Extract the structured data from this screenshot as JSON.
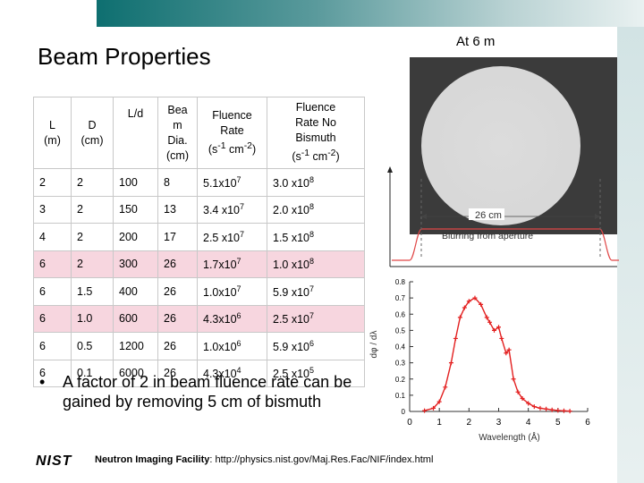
{
  "header": {
    "title": "Beam Properties",
    "at_label": "At 6 m"
  },
  "table": {
    "columns": [
      "L (m)",
      "D (cm)",
      "L/d",
      "Bea m Dia. (cm)",
      "Fluence Rate (s-1 cm-2)",
      "Fluence Rate No Bismuth (s-1 cm-2)"
    ],
    "rows": [
      {
        "L": "2",
        "D": "2",
        "Ld": "100",
        "dia": "8",
        "fr": "5.1x10",
        "fr_exp": "7",
        "frnb": "3.0 x10",
        "frnb_exp": "8",
        "highlight": false
      },
      {
        "L": "3",
        "D": "2",
        "Ld": "150",
        "dia": "13",
        "fr": "3.4 x10",
        "fr_exp": "7",
        "frnb": "2.0 x10",
        "frnb_exp": "8",
        "highlight": false
      },
      {
        "L": "4",
        "D": "2",
        "Ld": "200",
        "dia": "17",
        "fr": "2.5 x10",
        "fr_exp": "7",
        "frnb": "1.5 x10",
        "frnb_exp": "8",
        "highlight": false
      },
      {
        "L": "6",
        "D": "2",
        "Ld": "300",
        "dia": "26",
        "fr": "1.7x10",
        "fr_exp": "7",
        "frnb": "1.0 x10",
        "frnb_exp": "8",
        "highlight": true
      },
      {
        "L": "6",
        "D": "1.5",
        "Ld": "400",
        "dia": "26",
        "fr": "1.0x10",
        "fr_exp": "7",
        "frnb": "5.9 x10",
        "frnb_exp": "7",
        "highlight": false
      },
      {
        "L": "6",
        "D": "1.0",
        "Ld": "600",
        "dia": "26",
        "fr": "4.3x10",
        "fr_exp": "6",
        "frnb": "2.5 x10",
        "frnb_exp": "7",
        "highlight": true
      },
      {
        "L": "6",
        "D": "0.5",
        "Ld": "1200",
        "dia": "26",
        "fr": "1.0x10",
        "fr_exp": "6",
        "frnb": "5.9 x10",
        "frnb_exp": "6",
        "highlight": false
      },
      {
        "L": "6",
        "D": "0.1",
        "Ld": "6000",
        "dia": "26",
        "fr": "4.3x10",
        "fr_exp": "4",
        "frnb": "2.5 x10",
        "frnb_exp": "5",
        "highlight": false
      }
    ]
  },
  "profile": {
    "width_label": "26 cm",
    "blur_label": "Blurring from aperture"
  },
  "bullet": {
    "text": "A factor of 2 in beam fluence rate can be gained by removing 5 cm of bismuth"
  },
  "footer": {
    "logo": "NIST",
    "facility_label": "Neutron Imaging Facility",
    "url": ": http://physics.nist.gov/Maj.Res.Fac/NIF/index.html"
  },
  "colors": {
    "banner": "#0e6f70",
    "highlight_row": "#f7d6df",
    "curve": "#e32020"
  },
  "chart_data": {
    "type": "scatter",
    "xlabel": "Wavelength (Å)",
    "ylabel": "dφ / dλ",
    "xlim": [
      0,
      6
    ],
    "ylim": [
      0,
      0.8
    ],
    "xticks": [
      0,
      1,
      2,
      3,
      4,
      5,
      6
    ],
    "yticks": [
      0,
      0.1,
      0.2,
      0.3,
      0.4,
      0.5,
      0.6,
      0.7,
      0.8
    ],
    "grid": false,
    "x": [
      0.5,
      0.8,
      1.0,
      1.2,
      1.4,
      1.55,
      1.7,
      1.85,
      2.0,
      2.2,
      2.4,
      2.6,
      2.7,
      2.85,
      3.0,
      3.1,
      3.25,
      3.35,
      3.5,
      3.65,
      3.8,
      4.0,
      4.2,
      4.4,
      4.6,
      4.8,
      5.0,
      5.2,
      5.4
    ],
    "y": [
      0.005,
      0.02,
      0.06,
      0.15,
      0.3,
      0.45,
      0.58,
      0.64,
      0.68,
      0.7,
      0.66,
      0.58,
      0.55,
      0.5,
      0.52,
      0.45,
      0.36,
      0.38,
      0.2,
      0.12,
      0.08,
      0.05,
      0.03,
      0.02,
      0.015,
      0.01,
      0.006,
      0.004,
      0.002
    ]
  }
}
